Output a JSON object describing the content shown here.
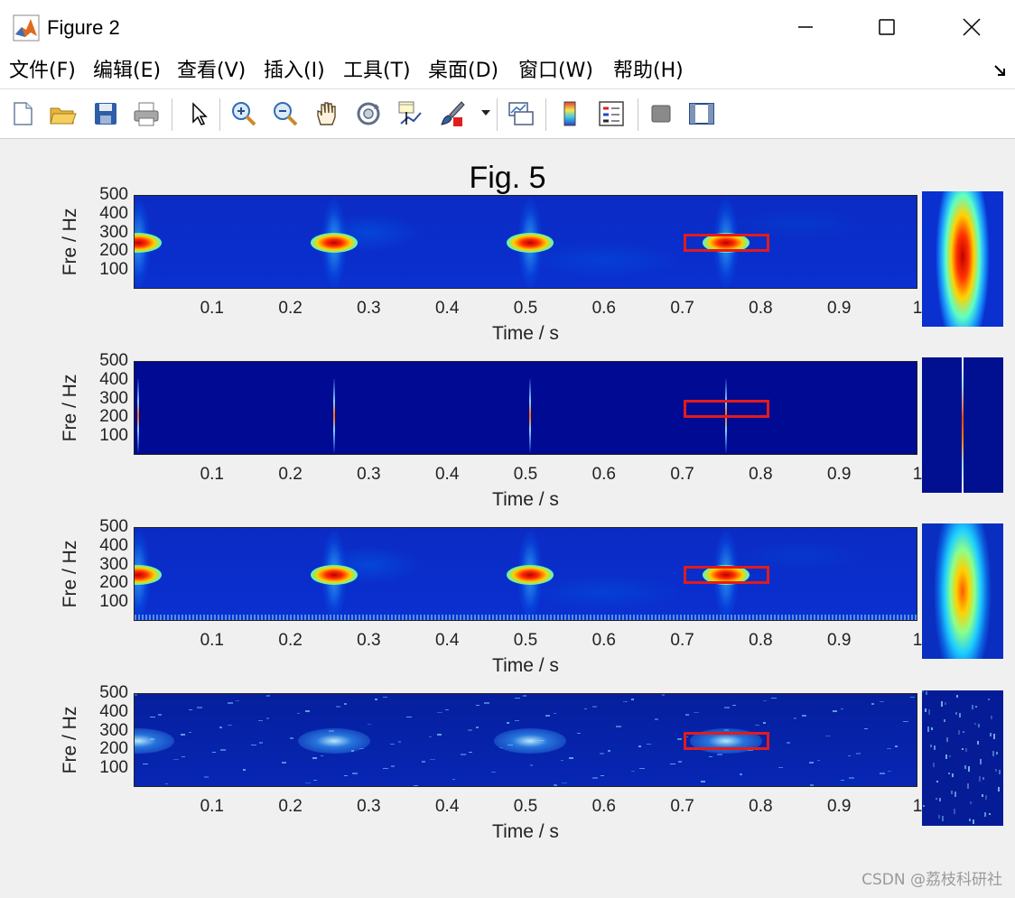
{
  "window": {
    "title": "Figure 2",
    "minimize_icon": "minimize-icon",
    "maximize_icon": "maximize-icon",
    "close_icon": "close-icon"
  },
  "menu": {
    "items": [
      "文件(F)",
      "编辑(E)",
      "查看(V)",
      "插入(I)",
      "工具(T)",
      "桌面(D)",
      "窗口(W)",
      "帮助(H)"
    ]
  },
  "toolbar": {
    "icons": [
      "new-figure-icon",
      "open-file-icon",
      "save-icon",
      "print-icon",
      "select-arrow-icon",
      "zoom-in-icon",
      "zoom-out-icon",
      "pan-hand-icon",
      "rotate-3d-icon",
      "data-cursor-icon",
      "brush-icon",
      "link-plot-icon",
      "colorbar-icon",
      "legend-icon",
      "hide-plot-tools-icon",
      "show-plot-tools-icon"
    ]
  },
  "figure": {
    "title": "Fig. 5",
    "xlabel": "Time / s",
    "ylabel": "Fre / Hz",
    "x_ticks": [
      "0.1",
      "0.2",
      "0.3",
      "0.4",
      "0.5",
      "0.6",
      "0.7",
      "0.8",
      "0.9",
      "1"
    ],
    "y_ticks": [
      "500",
      "400",
      "300",
      "200",
      "100"
    ]
  },
  "chart_data": [
    {
      "type": "heatmap",
      "style": "smooth",
      "xlim": [
        0,
        1
      ],
      "ylim": [
        0,
        500
      ],
      "xlabel": "Time / s",
      "ylabel": "Fre / Hz",
      "energy_peaks": [
        {
          "t": 0.005,
          "f": 250
        },
        {
          "t": 0.255,
          "f": 250
        },
        {
          "t": 0.505,
          "f": 250
        },
        {
          "t": 0.755,
          "f": 250
        }
      ],
      "highlight_box": {
        "t": [
          0.7,
          0.81
        ],
        "f": [
          200,
          300
        ]
      }
    },
    {
      "type": "heatmap",
      "style": "ridge",
      "xlim": [
        0,
        1
      ],
      "ylim": [
        0,
        500
      ],
      "xlabel": "Time / s",
      "ylabel": "Fre / Hz",
      "energy_peaks": [
        {
          "t": 0.005,
          "f": 250
        },
        {
          "t": 0.255,
          "f": 250
        },
        {
          "t": 0.505,
          "f": 250
        },
        {
          "t": 0.755,
          "f": 250
        }
      ],
      "highlight_box": {
        "t": [
          0.7,
          0.81
        ],
        "f": [
          200,
          300
        ]
      }
    },
    {
      "type": "heatmap",
      "style": "smooth",
      "xlim": [
        0,
        1
      ],
      "ylim": [
        0,
        500
      ],
      "xlabel": "Time / s",
      "ylabel": "Fre / Hz",
      "energy_peaks": [
        {
          "t": 0.005,
          "f": 250
        },
        {
          "t": 0.255,
          "f": 250
        },
        {
          "t": 0.505,
          "f": 250
        },
        {
          "t": 0.755,
          "f": 250
        }
      ],
      "highlight_box": {
        "t": [
          0.7,
          0.81
        ],
        "f": [
          200,
          300
        ]
      }
    },
    {
      "type": "heatmap",
      "style": "sparse",
      "xlim": [
        0,
        1
      ],
      "ylim": [
        0,
        500
      ],
      "xlabel": "Time / s",
      "ylabel": "Fre / Hz",
      "energy_peaks": [
        {
          "t": 0.005,
          "f": 250
        },
        {
          "t": 0.255,
          "f": 250
        },
        {
          "t": 0.505,
          "f": 250
        },
        {
          "t": 0.755,
          "f": 250
        }
      ],
      "highlight_box": {
        "t": [
          0.7,
          0.81
        ],
        "f": [
          200,
          300
        ]
      }
    }
  ],
  "watermark": "CSDN @荔枝科研社"
}
